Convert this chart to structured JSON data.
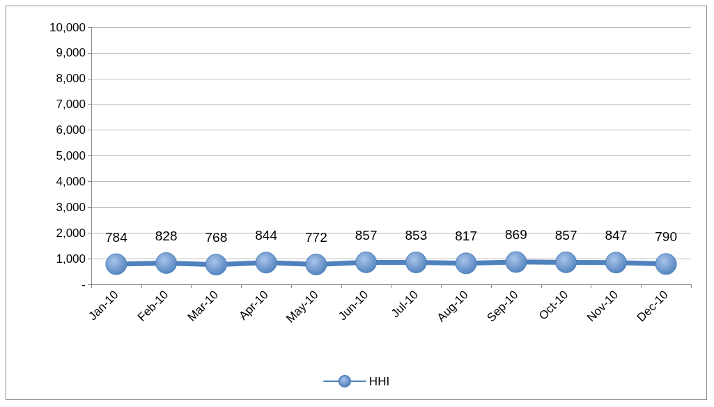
{
  "chart_data": {
    "type": "line",
    "categories": [
      "Jan-10",
      "Feb-10",
      "Mar-10",
      "Apr-10",
      "May-10",
      "Jun-10",
      "Jul-10",
      "Aug-10",
      "Sep-10",
      "Oct-10",
      "Nov-10",
      "Dec-10"
    ],
    "series": [
      {
        "name": "HHI",
        "color": "#4f81bd",
        "values": [
          784,
          828,
          768,
          844,
          772,
          857,
          853,
          817,
          869,
          857,
          847,
          790
        ]
      }
    ],
    "ylim": [
      0,
      10000
    ],
    "yticks": [
      {
        "value": 0,
        "label": "-"
      },
      {
        "value": 1000,
        "label": "1,000"
      },
      {
        "value": 2000,
        "label": "2,000"
      },
      {
        "value": 3000,
        "label": "3,000"
      },
      {
        "value": 4000,
        "label": "4,000"
      },
      {
        "value": 5000,
        "label": "5,000"
      },
      {
        "value": 6000,
        "label": "6,000"
      },
      {
        "value": 7000,
        "label": "7,000"
      },
      {
        "value": 8000,
        "label": "8,000"
      },
      {
        "value": 9000,
        "label": "9,000"
      },
      {
        "value": 10000,
        "label": "10,000"
      }
    ],
    "grid": "y",
    "legend": "bottom",
    "marker": "circle",
    "line_style": "solid",
    "data_labels": true
  }
}
